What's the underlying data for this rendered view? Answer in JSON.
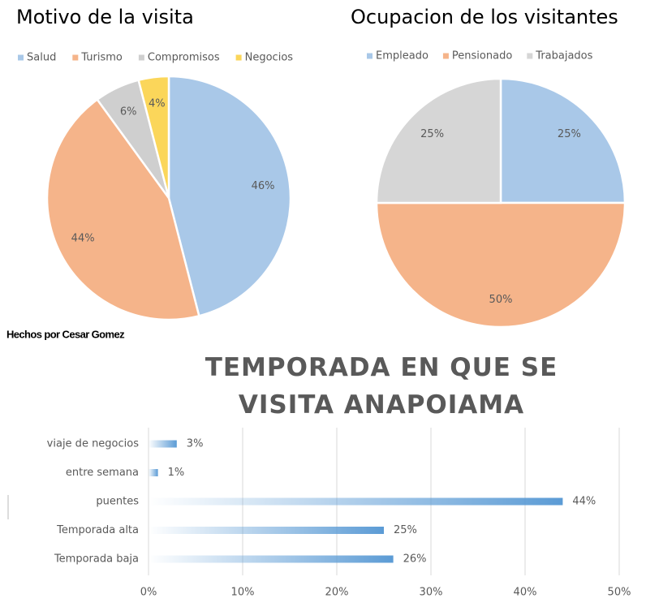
{
  "caption": "Hechos por Cesar Gomez",
  "chart_data": [
    {
      "type": "pie",
      "title": "Motivo de la visita",
      "legend": "top",
      "categories": [
        "Salud",
        "Turismo",
        "Compromisos",
        "Negocios"
      ],
      "values": [
        46,
        44,
        6,
        4
      ],
      "value_labels": [
        "46%",
        "44%",
        "6%",
        "4%"
      ],
      "colors": [
        "#a9c8e8",
        "#f5b48a",
        "#cfcfcf",
        "#fbd65a"
      ]
    },
    {
      "type": "pie",
      "title": "Ocupacion de los visitantes",
      "legend": "top",
      "categories": [
        "Empleado",
        "Pensionado",
        "Trabajados"
      ],
      "values": [
        25,
        50,
        25
      ],
      "value_labels": [
        "25%",
        "50%",
        "25%"
      ],
      "colors": [
        "#a9c8e8",
        "#f5b48a",
        "#d6d6d6"
      ]
    },
    {
      "type": "bar",
      "orientation": "horizontal",
      "title": "TEMPORADA EN QUE SE VISITA ANAPOIAMA",
      "categories": [
        "viaje de negocios",
        "entre semana",
        "puentes",
        "Temporada alta",
        "Temporada baja"
      ],
      "values": [
        3,
        1,
        44,
        25,
        26
      ],
      "value_labels": [
        "3%",
        "1%",
        "44%",
        "25%",
        "26%"
      ],
      "color": "#5b9bd5",
      "grid": true,
      "xlim": [
        0,
        50
      ],
      "xticks": [
        {
          "value": 0,
          "label": "0%"
        },
        {
          "value": 10,
          "label": "10%"
        },
        {
          "value": 20,
          "label": "20%"
        },
        {
          "value": 30,
          "label": "30%"
        },
        {
          "value": 40,
          "label": "40%"
        },
        {
          "value": 50,
          "label": "50%"
        }
      ]
    }
  ]
}
